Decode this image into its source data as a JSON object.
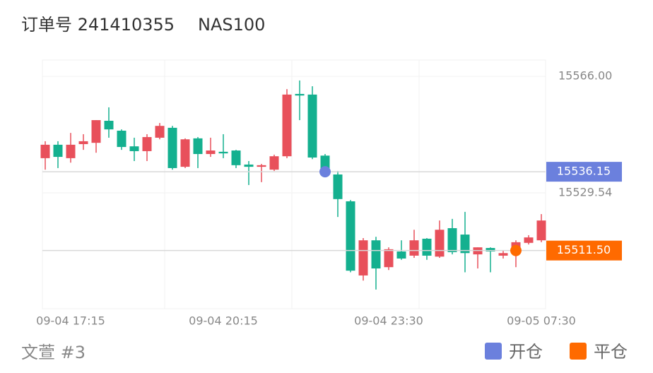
{
  "chart_data": {
    "type": "candlestick",
    "title": "订单号 241410355",
    "subtitle": "NAS100",
    "footer": "文萱 #3",
    "up_color": "#e8505b",
    "down_color": "#14b08f",
    "categories": [
      null,
      null,
      "09-04 17:15",
      null,
      null,
      null,
      null,
      null,
      null,
      null,
      null,
      null,
      null,
      null,
      "09-04 20:15",
      null,
      null,
      null,
      null,
      null,
      null,
      null,
      null,
      null,
      null,
      null,
      null,
      "09-04 23:30",
      null,
      null,
      null,
      null,
      null,
      null,
      null,
      null,
      null,
      null,
      null,
      "09-05 07:30"
    ],
    "open": [
      15540.4,
      15544.6,
      15540.4,
      15544.8,
      15545.2,
      15552.1,
      15549.0,
      15544.1,
      15542.6,
      15546.8,
      15549.9,
      15537.7,
      15546.6,
      15541.7,
      15542.4,
      15542.8,
      15538.4,
      15537.7,
      15536.8,
      15541.0,
      15560.5,
      15560.3,
      15541.2,
      15535.3,
      15526.9,
      15503.7,
      15514.7,
      15506.3,
      15511.2,
      15509.9,
      15515.2,
      15509.6,
      15518.5,
      15516.5,
      15510.3,
      15512.3,
      15509.9,
      15511.2,
      15513.9,
      15514.7
    ],
    "high": [
      15545.7,
      15545.7,
      15548.3,
      15547.9,
      15552.3,
      15556.3,
      15549.4,
      15546.8,
      15547.9,
      15551.4,
      15550.5,
      15546.6,
      15547.0,
      15546.8,
      15547.9,
      15543.0,
      15539.5,
      15538.6,
      15541.5,
      15562.0,
      15564.7,
      15562.9,
      15541.7,
      15536.4,
      15527.3,
      15515.4,
      15515.8,
      15512.5,
      15514.7,
      15518.0,
      15515.4,
      15520.9,
      15521.4,
      15523.6,
      15512.5,
      15512.5,
      15511.6,
      15514.7,
      15516.3,
      15522.9
    ],
    "low": [
      15536.8,
      15537.3,
      15539.0,
      15543.0,
      15542.1,
      15546.8,
      15543.0,
      15539.5,
      15539.5,
      15546.3,
      15536.8,
      15537.3,
      15537.3,
      15540.8,
      15540.4,
      15537.3,
      15532.0,
      15532.9,
      15536.4,
      15540.4,
      15552.3,
      15540.1,
      15535.7,
      15522.0,
      15504.7,
      15502.1,
      15499.3,
      15505.4,
      15508.6,
      15509.2,
      15508.6,
      15509.2,
      15510.3,
      15504.7,
      15505.9,
      15504.7,
      15509.0,
      15506.3,
      15513.4,
      15514.1
    ],
    "close": [
      15544.6,
      15540.8,
      15544.6,
      15545.7,
      15552.3,
      15549.4,
      15543.9,
      15542.6,
      15547.0,
      15550.5,
      15537.3,
      15546.3,
      15541.7,
      15542.8,
      15541.9,
      15538.2,
      15537.7,
      15538.2,
      15541.0,
      15560.3,
      15560.0,
      15540.6,
      15536.8,
      15527.6,
      15505.2,
      15514.7,
      15505.9,
      15511.9,
      15509.0,
      15514.7,
      15509.9,
      15518.0,
      15511.0,
      15510.7,
      15512.5,
      15511.2,
      15510.7,
      15514.1,
      15515.6,
      15520.9
    ],
    "ylim": [
      15493.3,
      15571.1
    ],
    "yticks": [
      {
        "value": 15566,
        "label": "15566.00"
      },
      {
        "value": 15529.54,
        "label": "15529.54"
      }
    ],
    "price_lines": [
      {
        "name": "开仓",
        "color": "#6b80dd",
        "value": 15536.15,
        "value_label": "15536.15"
      },
      {
        "name": "平仓",
        "color": "#ff6a00",
        "value": 15511.5,
        "value_label": "15511.50"
      }
    ]
  }
}
